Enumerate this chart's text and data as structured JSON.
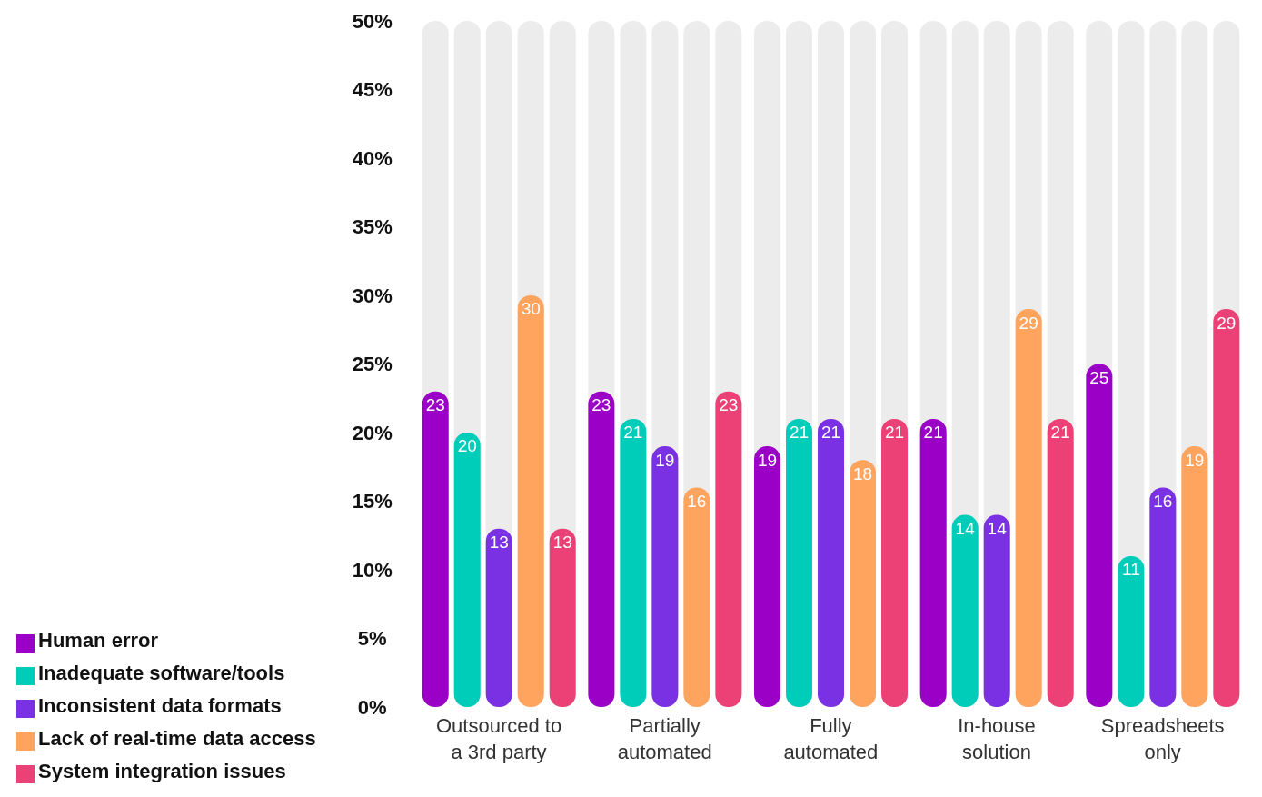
{
  "chart_data": {
    "type": "bar",
    "categories": [
      "Outsourced to a 3rd party",
      "Partially automated",
      "Fully automated",
      "In-house solution",
      "Spreadsheets only"
    ],
    "series": [
      {
        "name": "Human error",
        "color": "#9a00c6",
        "values": [
          23,
          23,
          19,
          21,
          25
        ]
      },
      {
        "name": "Inadequate software/tools",
        "color": "#00cdb9",
        "values": [
          20,
          21,
          21,
          14,
          11
        ]
      },
      {
        "name": "Inconsistent data formats",
        "color": "#7a30e3",
        "values": [
          13,
          19,
          21,
          14,
          16
        ]
      },
      {
        "name": "Lack of real-time data access",
        "color": "#ffa45e",
        "values": [
          30,
          16,
          18,
          29,
          19
        ]
      },
      {
        "name": "System integration issues",
        "color": "#eb4177",
        "values": [
          13,
          23,
          21,
          21,
          29
        ]
      }
    ],
    "ylim": [
      0,
      50
    ],
    "yticks": [
      {
        "value": 0,
        "label": "0%"
      },
      {
        "value": 5,
        "label": "5%"
      },
      {
        "value": 10,
        "label": "10%"
      },
      {
        "value": 15,
        "label": "15%"
      },
      {
        "value": 20,
        "label": "20%"
      },
      {
        "value": 25,
        "label": "25%"
      },
      {
        "value": 30,
        "label": "30%"
      },
      {
        "value": 35,
        "label": "35%"
      },
      {
        "value": 40,
        "label": "40%"
      },
      {
        "value": 45,
        "label": "45%"
      },
      {
        "value": 50,
        "label": "50%"
      }
    ],
    "grid": false,
    "legend": "bottom left",
    "data_labels": true
  }
}
